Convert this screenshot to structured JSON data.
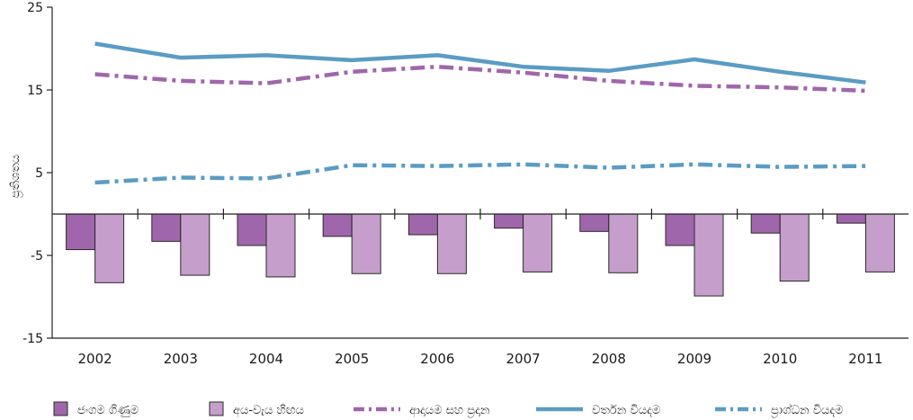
{
  "chart_data": {
    "type": "bar",
    "title": "",
    "xlabel": "",
    "ylabel": "ප්‍රතිශතය",
    "ylim": [
      -15,
      25
    ],
    "yticks": [
      25,
      15,
      5,
      -5,
      -15
    ],
    "ytick_labels": [
      "25",
      "15",
      "5",
      "-5",
      "-15"
    ],
    "categories": [
      "2002",
      "2003",
      "2004",
      "2005",
      "2006",
      "2007",
      "2008",
      "2009",
      "2010",
      "2011"
    ],
    "grid": false,
    "legend_position": "bottom",
    "series": [
      {
        "name": "ජංගම ගිණුම",
        "kind": "bar",
        "color": "#a066ab",
        "values": [
          -4.3,
          -3.3,
          -3.8,
          -2.7,
          -2.5,
          -1.7,
          -2.1,
          -3.8,
          -2.3,
          -1.1
        ]
      },
      {
        "name": "අය-වැය හිඟය",
        "kind": "bar",
        "color": "#c59ecb",
        "values": [
          -8.3,
          -7.4,
          -7.6,
          -7.2,
          -7.2,
          -7.0,
          -7.1,
          -9.9,
          -8.1,
          -7.0
        ]
      },
      {
        "name": "ආදායම සහ ප්‍රදාන",
        "kind": "line",
        "style": "dash-dot",
        "color": "#a066ab",
        "values": [
          16.9,
          16.1,
          15.8,
          17.2,
          17.8,
          17.1,
          16.1,
          15.5,
          15.3,
          14.9
        ]
      },
      {
        "name": "වර්තන වියදම",
        "kind": "line",
        "style": "solid",
        "color": "#5a9cc3",
        "values": [
          20.6,
          18.9,
          19.2,
          18.6,
          19.2,
          17.8,
          17.3,
          18.7,
          17.2,
          15.9
        ]
      },
      {
        "name": "ප්‍රාග්ධන වියදම",
        "kind": "line",
        "style": "dash-dot",
        "color": "#5a9cc3",
        "values": [
          3.8,
          4.4,
          4.3,
          5.9,
          5.8,
          6.0,
          5.6,
          6.0,
          5.7,
          5.8
        ]
      }
    ]
  }
}
